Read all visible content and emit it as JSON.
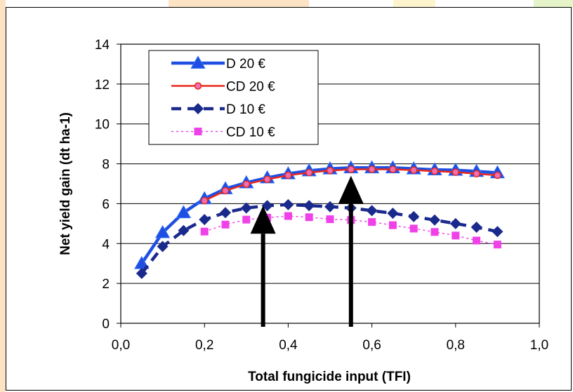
{
  "colors": {
    "background_stripe_orange": "#fbe3c4",
    "background_stripe_yellow": "#fdf3cc",
    "background_stripe_green": "#e4f3c8",
    "arrow": "#000000"
  },
  "chart_data": {
    "type": "line",
    "xlabel": "Total fungicide input (TFI)",
    "ylabel": "Net yield gain (dt ha-1)",
    "xlim": [
      0,
      1
    ],
    "ylim": [
      0,
      14
    ],
    "xticks": [
      "0,0",
      "0,2",
      "0,4",
      "0,6",
      "0,8",
      "1,0"
    ],
    "yticks": [
      "0",
      "2",
      "4",
      "6",
      "8",
      "10",
      "12",
      "14"
    ],
    "grid": "horizontal",
    "legend_position": "top-left",
    "x": [
      0.05,
      0.1,
      0.15,
      0.2,
      0.25,
      0.3,
      0.35,
      0.4,
      0.45,
      0.5,
      0.55,
      0.6,
      0.65,
      0.7,
      0.75,
      0.8,
      0.85,
      0.9
    ],
    "series": [
      {
        "name": "D 20 €",
        "color": "#1f4fe0",
        "marker": "triangle",
        "line": "solid-thick",
        "values": [
          3.0,
          4.55,
          5.55,
          6.25,
          6.75,
          7.05,
          7.3,
          7.5,
          7.65,
          7.75,
          7.8,
          7.8,
          7.8,
          7.75,
          7.7,
          7.68,
          7.62,
          7.55
        ]
      },
      {
        "name": "CD 20 €",
        "color": "#e8281e",
        "marker": "circle",
        "line": "solid",
        "values": [
          null,
          null,
          null,
          6.15,
          6.65,
          6.98,
          7.22,
          7.42,
          7.56,
          7.66,
          7.72,
          7.72,
          7.72,
          7.68,
          7.63,
          7.58,
          7.5,
          7.42
        ]
      },
      {
        "name": "D 10 €",
        "color": "#1a2a8c",
        "marker": "diamond",
        "line": "dashed-thick",
        "values": [
          2.5,
          3.85,
          4.65,
          5.2,
          5.55,
          5.78,
          5.9,
          5.95,
          5.9,
          5.85,
          5.78,
          5.65,
          5.52,
          5.35,
          5.18,
          5.0,
          4.82,
          4.6
        ]
      },
      {
        "name": "CD 10 €",
        "color": "#f040e8",
        "marker": "square",
        "line": "dotted",
        "values": [
          null,
          null,
          null,
          4.6,
          4.95,
          5.2,
          5.3,
          5.38,
          5.32,
          5.22,
          5.18,
          5.08,
          4.92,
          4.75,
          4.58,
          4.4,
          4.15,
          3.95
        ]
      }
    ],
    "annotations": [
      {
        "type": "arrow",
        "x": 0.34,
        "y_from": 0,
        "y_to": 5.9
      },
      {
        "type": "arrow",
        "x": 0.55,
        "y_from": 0,
        "y_to": 7.4
      }
    ]
  }
}
